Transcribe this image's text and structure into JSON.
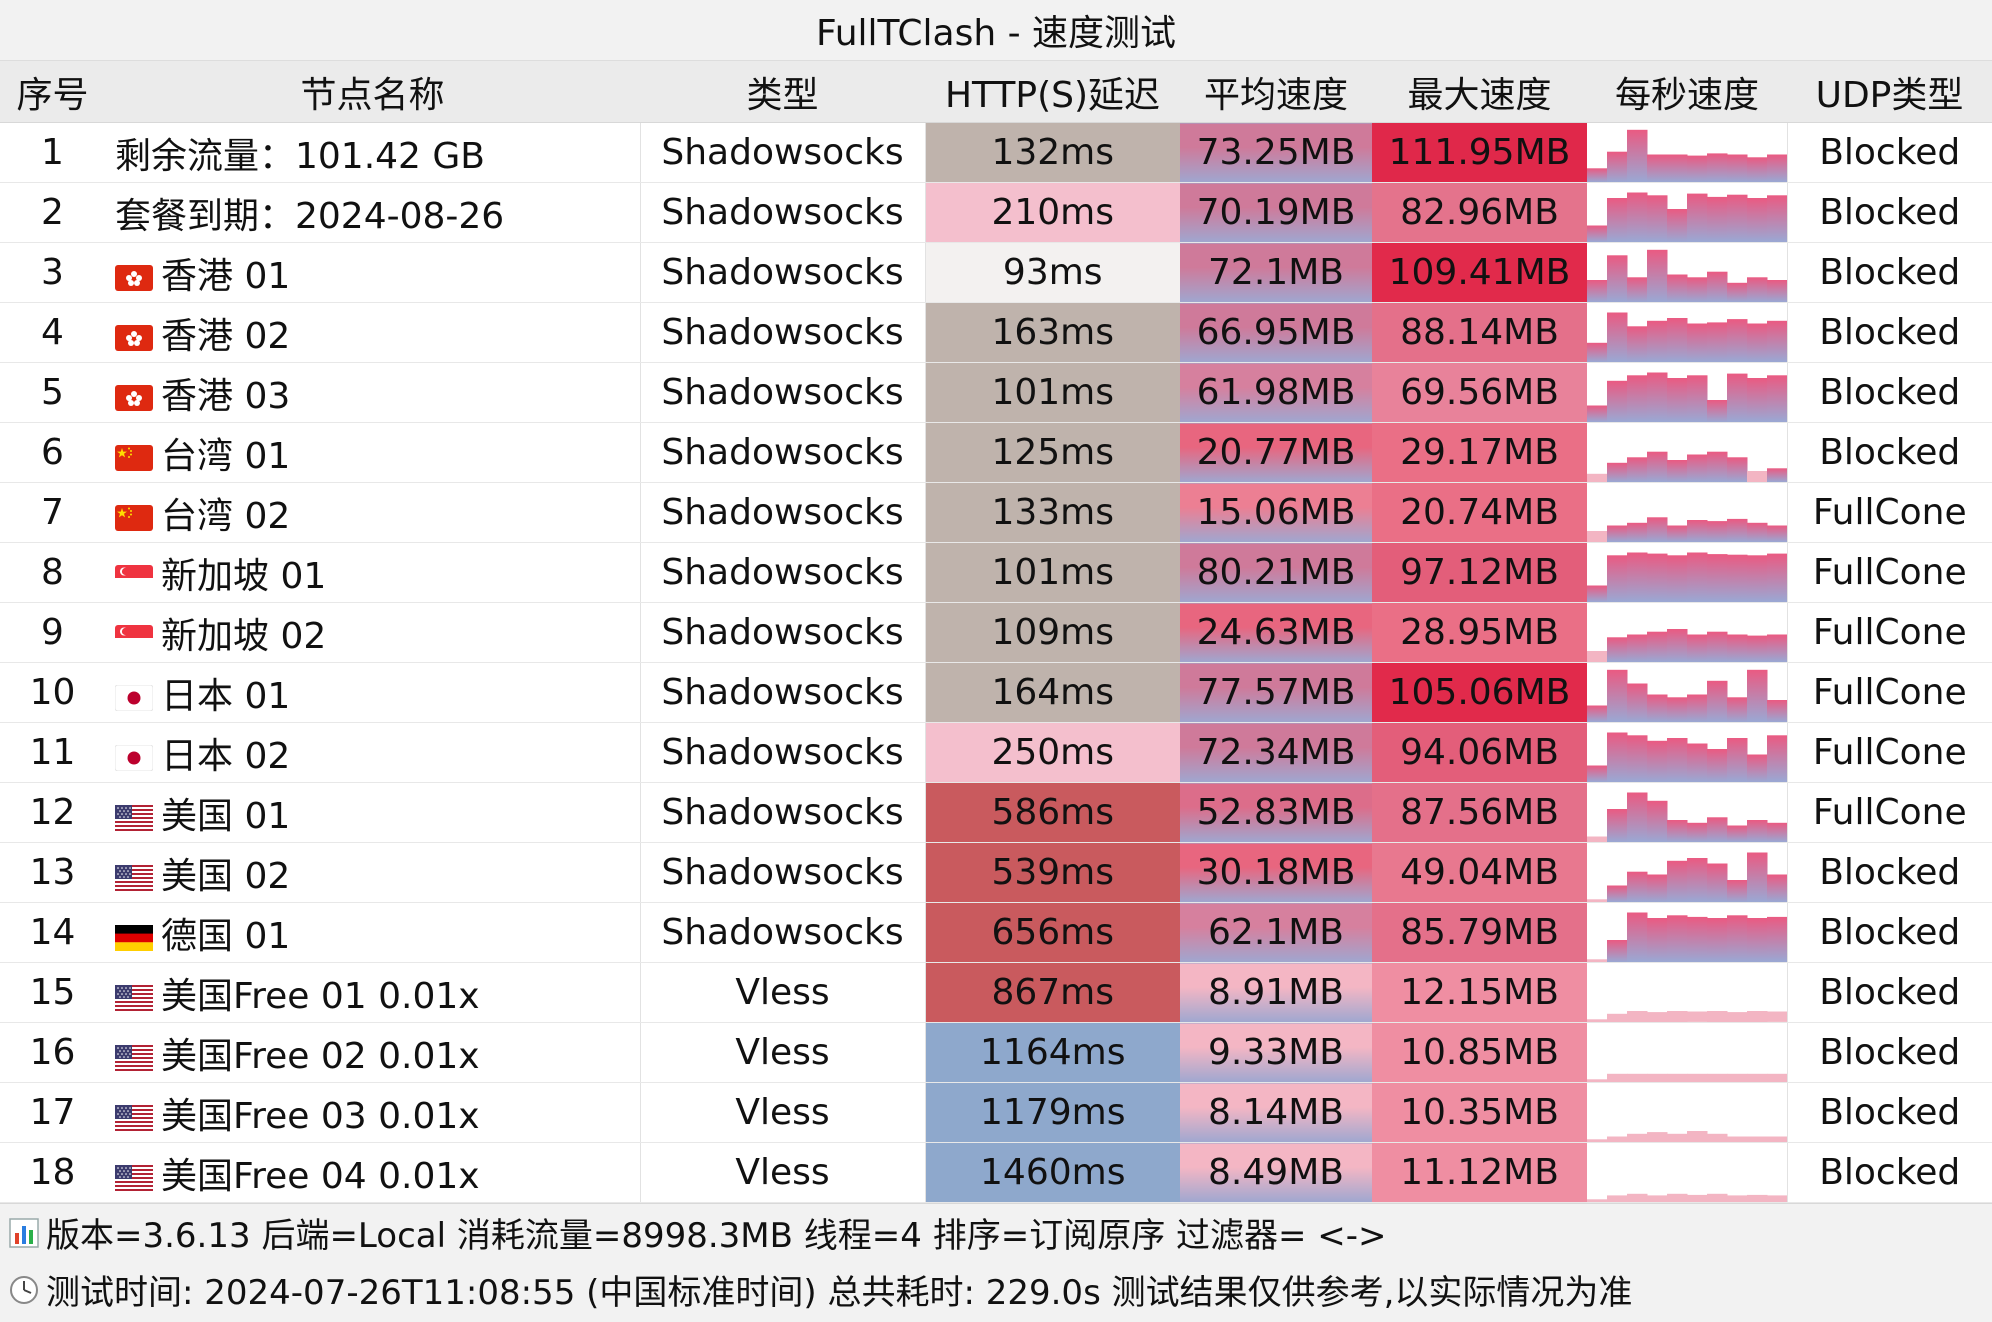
{
  "window": {
    "title": "FullTClash - 速度测试"
  },
  "table": {
    "headers": [
      "序号",
      "节点名称",
      "类型",
      "HTTP(S)延迟",
      "平均速度",
      "最大速度",
      "每秒速度",
      "UDP类型"
    ],
    "rows": [
      {
        "idx": "1",
        "flag": "",
        "name": "剩余流量：101.42 GB",
        "type": "Shadowsocks",
        "latency": "132ms",
        "avg": "73.25MB",
        "max": "111.95MB",
        "udp": "Blocked",
        "lat_color": "#bfb3ac",
        "avg_color": "#cf7a9a",
        "max_color": "#e0284a",
        "spark": [
          0.25,
          0.55,
          0.95,
          0.5,
          0.5,
          0.48,
          0.52,
          0.5,
          0.45,
          0.5
        ]
      },
      {
        "idx": "2",
        "flag": "",
        "name": "套餐到期：2024-08-26",
        "type": "Shadowsocks",
        "latency": "210ms",
        "avg": "70.19MB",
        "max": "82.96MB",
        "udp": "Blocked",
        "lat_color": "#f4bfcd",
        "avg_color": "#cf7a9a",
        "max_color": "#e4738c",
        "spark": [
          0.3,
          0.8,
          0.9,
          0.85,
          0.6,
          0.88,
          0.82,
          0.86,
          0.8,
          0.85
        ]
      },
      {
        "idx": "3",
        "flag": "hk",
        "name": "香港 01",
        "type": "Shadowsocks",
        "latency": "93ms",
        "avg": "72.1MB",
        "max": "109.41MB",
        "udp": "Blocked",
        "lat_color": "#f3f1f0",
        "avg_color": "#cf7a9a",
        "max_color": "#e12a4b",
        "spark": [
          0.4,
          0.85,
          0.45,
          0.95,
          0.5,
          0.45,
          0.55,
          0.35,
          0.45,
          0.4
        ]
      },
      {
        "idx": "4",
        "flag": "hk",
        "name": "香港 02",
        "type": "Shadowsocks",
        "latency": "163ms",
        "avg": "66.95MB",
        "max": "88.14MB",
        "udp": "Blocked",
        "lat_color": "#bfb3ac",
        "avg_color": "#cf7a9a",
        "max_color": "#e4708a",
        "spark": [
          0.35,
          0.9,
          0.65,
          0.75,
          0.8,
          0.7,
          0.72,
          0.78,
          0.7,
          0.75
        ]
      },
      {
        "idx": "5",
        "flag": "hk",
        "name": "香港 03",
        "type": "Shadowsocks",
        "latency": "101ms",
        "avg": "61.98MB",
        "max": "69.56MB",
        "udp": "Blocked",
        "lat_color": "#bfb3ac",
        "avg_color": "#d6809e",
        "max_color": "#e8829a",
        "spark": [
          0.3,
          0.75,
          0.85,
          0.9,
          0.8,
          0.85,
          0.4,
          0.88,
          0.8,
          0.85
        ]
      },
      {
        "idx": "6",
        "flag": "tw",
        "name": "台湾 01",
        "type": "Shadowsocks",
        "latency": "125ms",
        "avg": "20.77MB",
        "max": "29.17MB",
        "udp": "Blocked",
        "lat_color": "#bfb3ac",
        "avg_color": "#e8667f",
        "max_color": "#ea6f86",
        "spark": [
          0.15,
          0.35,
          0.45,
          0.55,
          0.4,
          0.5,
          0.55,
          0.45,
          0.2,
          0.25
        ]
      },
      {
        "idx": "7",
        "flag": "tw",
        "name": "台湾 02",
        "type": "Shadowsocks",
        "latency": "133ms",
        "avg": "15.06MB",
        "max": "20.74MB",
        "udp": "FullCone",
        "lat_color": "#bfb3ac",
        "avg_color": "#ec7f93",
        "max_color": "#ea6f86",
        "spark": [
          0.2,
          0.3,
          0.35,
          0.45,
          0.3,
          0.4,
          0.38,
          0.42,
          0.35,
          0.3
        ]
      },
      {
        "idx": "8",
        "flag": "sg",
        "name": "新加坡 01",
        "type": "Shadowsocks",
        "latency": "101ms",
        "avg": "80.21MB",
        "max": "97.12MB",
        "udp": "FullCone",
        "lat_color": "#bfb3ac",
        "avg_color": "#cf7a9a",
        "max_color": "#e35e7a",
        "spark": [
          0.3,
          0.85,
          0.9,
          0.88,
          0.85,
          0.9,
          0.87,
          0.86,
          0.85,
          0.88
        ]
      },
      {
        "idx": "9",
        "flag": "sg",
        "name": "新加坡 02",
        "type": "Shadowsocks",
        "latency": "109ms",
        "avg": "24.63MB",
        "max": "28.95MB",
        "udp": "FullCone",
        "lat_color": "#bfb3ac",
        "avg_color": "#e8667f",
        "max_color": "#ea6f86",
        "spark": [
          0.2,
          0.45,
          0.5,
          0.55,
          0.6,
          0.5,
          0.55,
          0.5,
          0.48,
          0.5
        ]
      },
      {
        "idx": "10",
        "flag": "jp",
        "name": "日本 01",
        "type": "Shadowsocks",
        "latency": "164ms",
        "avg": "77.57MB",
        "max": "105.06MB",
        "udp": "FullCone",
        "lat_color": "#bfb3ac",
        "avg_color": "#cf7a9a",
        "max_color": "#e12a4b",
        "spark": [
          0.3,
          0.95,
          0.7,
          0.5,
          0.45,
          0.5,
          0.75,
          0.45,
          0.95,
          0.4
        ]
      },
      {
        "idx": "11",
        "flag": "jp",
        "name": "日本 02",
        "type": "Shadowsocks",
        "latency": "250ms",
        "avg": "72.34MB",
        "max": "94.06MB",
        "udp": "FullCone",
        "lat_color": "#f4bfcd",
        "avg_color": "#cf7a9a",
        "max_color": "#e35e7a",
        "spark": [
          0.3,
          0.9,
          0.85,
          0.75,
          0.8,
          0.7,
          0.6,
          0.8,
          0.5,
          0.85
        ]
      },
      {
        "idx": "12",
        "flag": "us",
        "name": "美国 01",
        "type": "Shadowsocks",
        "latency": "586ms",
        "avg": "52.83MB",
        "max": "87.56MB",
        "udp": "FullCone",
        "lat_color": "#c95a5e",
        "avg_color": "#dc6d8a",
        "max_color": "#e4708a",
        "spark": [
          0.1,
          0.6,
          0.9,
          0.75,
          0.4,
          0.35,
          0.45,
          0.3,
          0.4,
          0.35
        ]
      },
      {
        "idx": "13",
        "flag": "us",
        "name": "美国 02",
        "type": "Shadowsocks",
        "latency": "539ms",
        "avg": "30.18MB",
        "max": "49.04MB",
        "udp": "Blocked",
        "lat_color": "#c95a5e",
        "avg_color": "#e8667f",
        "max_color": "#e8788f",
        "spark": [
          0.05,
          0.3,
          0.55,
          0.5,
          0.75,
          0.8,
          0.7,
          0.4,
          0.9,
          0.5
        ]
      },
      {
        "idx": "14",
        "flag": "de",
        "name": "德国 01",
        "type": "Shadowsocks",
        "latency": "656ms",
        "avg": "62.1MB",
        "max": "85.79MB",
        "udp": "Blocked",
        "lat_color": "#c95a5e",
        "avg_color": "#d6809e",
        "max_color": "#e4708a",
        "spark": [
          0.05,
          0.4,
          0.9,
          0.8,
          0.85,
          0.82,
          0.8,
          0.85,
          0.8,
          0.82
        ]
      },
      {
        "idx": "15",
        "flag": "us",
        "name": "美国Free 01 0.01x",
        "type": "Vless",
        "latency": "867ms",
        "avg": "8.91MB",
        "max": "12.15MB",
        "udp": "Blocked",
        "lat_color": "#c95a5e",
        "avg_color": "#f4b6c4",
        "max_color": "#ef8ea2",
        "spark": [
          0.05,
          0.15,
          0.2,
          0.18,
          0.2,
          0.19,
          0.2,
          0.18,
          0.2,
          0.19
        ]
      },
      {
        "idx": "16",
        "flag": "us",
        "name": "美国Free 02 0.01x",
        "type": "Vless",
        "latency": "1164ms",
        "avg": "9.33MB",
        "max": "10.85MB",
        "udp": "Blocked",
        "lat_color": "#8ea8cc",
        "avg_color": "#f4b6c4",
        "max_color": "#ef8ea2",
        "spark": [
          0.05,
          0.15,
          0.15,
          0.15,
          0.15,
          0.15,
          0.15,
          0.15,
          0.15,
          0.15
        ]
      },
      {
        "idx": "17",
        "flag": "us",
        "name": "美国Free 03 0.01x",
        "type": "Vless",
        "latency": "1179ms",
        "avg": "8.14MB",
        "max": "10.35MB",
        "udp": "Blocked",
        "lat_color": "#8ea8cc",
        "avg_color": "#f4b6c4",
        "max_color": "#ef8ea2",
        "spark": [
          0.05,
          0.1,
          0.15,
          0.18,
          0.15,
          0.2,
          0.15,
          0.1,
          0.1,
          0.1
        ]
      },
      {
        "idx": "18",
        "flag": "us",
        "name": "美国Free 04 0.01x",
        "type": "Vless",
        "latency": "1460ms",
        "avg": "8.49MB",
        "max": "11.12MB",
        "udp": "Blocked",
        "lat_color": "#8ea8cc",
        "avg_color": "#f4b6c4",
        "max_color": "#ef8ea2",
        "spark": [
          0.05,
          0.12,
          0.15,
          0.12,
          0.15,
          0.13,
          0.15,
          0.12,
          0.13,
          0.12
        ]
      }
    ]
  },
  "footer": {
    "line1_icon": "bar-chart-icon",
    "line1": "版本=3.6.13  后端=Local  消耗流量=8998.3MB   线程=4  排序=订阅原序  过滤器= <->",
    "line2_icon": "clock-icon",
    "line2": "测试时间: 2024-07-26T11:08:55 (中国标准时间) 总共耗时: 229.0s 测试结果仅供参考,以实际情况为准"
  },
  "colors": {
    "spark_pink": "#ea5a82",
    "spark_blue": "#9aa8d4",
    "avg_blue": "#9fa7d0"
  }
}
